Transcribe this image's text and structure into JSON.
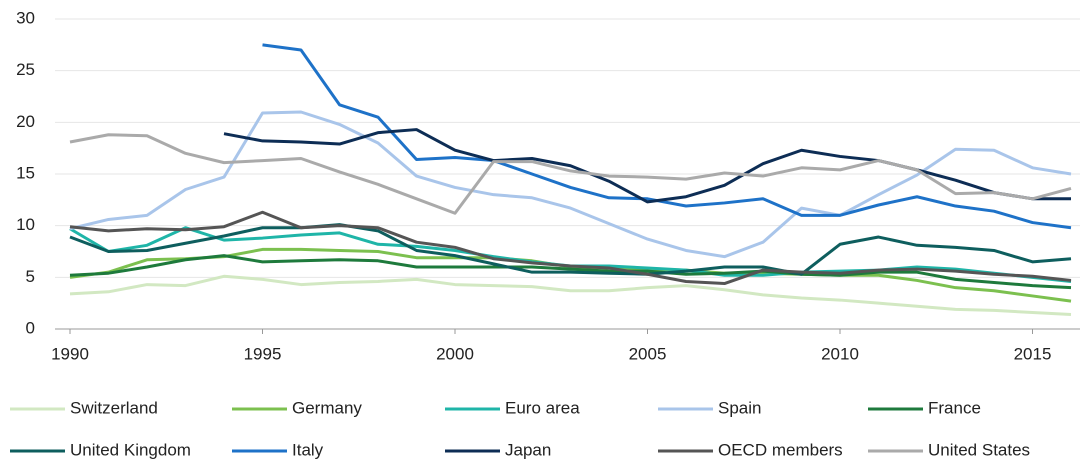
{
  "chart_data": {
    "type": "line",
    "x": [
      1990,
      1991,
      1992,
      1993,
      1994,
      1995,
      1996,
      1997,
      1998,
      1999,
      2000,
      2001,
      2002,
      2003,
      2004,
      2005,
      2006,
      2007,
      2008,
      2009,
      2010,
      2011,
      2012,
      2013,
      2014,
      2015,
      2016
    ],
    "xlim": [
      1990,
      2016
    ],
    "xticks": [
      1990,
      1995,
      2000,
      2005,
      2010,
      2015
    ],
    "ylim": [
      0,
      30
    ],
    "yticks": [
      0,
      5,
      10,
      15,
      20,
      25,
      30
    ],
    "grid": true,
    "legend": "bottom",
    "series": [
      {
        "name": "Switzerland",
        "color": "#d2e8c2",
        "values": [
          3.4,
          3.6,
          4.3,
          4.2,
          5.1,
          4.8,
          4.3,
          4.5,
          4.6,
          4.8,
          4.3,
          4.2,
          4.1,
          3.7,
          3.7,
          4.0,
          4.2,
          3.8,
          3.3,
          3.0,
          2.8,
          2.5,
          2.2,
          1.9,
          1.8,
          1.6,
          1.4
        ]
      },
      {
        "name": "Germany",
        "color": "#7cc04f",
        "values": [
          5.0,
          5.5,
          6.7,
          6.8,
          7.0,
          7.7,
          7.7,
          7.6,
          7.5,
          6.9,
          6.9,
          6.9,
          6.6,
          6.0,
          5.9,
          5.8,
          5.7,
          5.4,
          5.4,
          5.3,
          5.2,
          5.2,
          4.7,
          4.0,
          3.7,
          3.2,
          2.7
        ]
      },
      {
        "name": "Euro area",
        "color": "#1fb5a8",
        "values": [
          9.7,
          7.5,
          8.1,
          9.8,
          8.6,
          8.8,
          9.1,
          9.3,
          8.2,
          8.0,
          7.6,
          7.0,
          6.5,
          6.1,
          6.1,
          5.9,
          5.7,
          5.2,
          5.2,
          5.5,
          5.6,
          5.7,
          6.0,
          5.8,
          5.4,
          5.0,
          4.6
        ]
      },
      {
        "name": "Spain",
        "color": "#a9c5ea",
        "values": [
          9.7,
          10.6,
          11.0,
          13.5,
          14.7,
          20.9,
          21.0,
          19.8,
          18.0,
          14.8,
          13.7,
          13.0,
          12.7,
          11.7,
          10.2,
          8.7,
          7.6,
          7.0,
          8.4,
          11.7,
          11.0,
          13.0,
          14.9,
          17.4,
          17.3,
          15.6,
          15.0
        ]
      },
      {
        "name": "France",
        "color": "#1e7a3c",
        "values": [
          5.2,
          5.4,
          6.0,
          6.7,
          7.1,
          6.5,
          6.6,
          6.7,
          6.6,
          6.0,
          6.0,
          6.0,
          6.0,
          5.8,
          5.6,
          5.6,
          5.3,
          5.4,
          5.6,
          5.3,
          5.2,
          5.5,
          5.5,
          4.8,
          4.5,
          4.2,
          4.0
        ]
      },
      {
        "name": "United Kingdom",
        "color": "#0e5e5e",
        "values": [
          8.9,
          7.5,
          7.6,
          8.3,
          9.0,
          9.8,
          9.8,
          10.1,
          9.5,
          7.6,
          7.1,
          6.3,
          5.5,
          5.5,
          5.4,
          5.3,
          5.6,
          6.0,
          6.0,
          5.3,
          8.2,
          8.9,
          8.1,
          7.9,
          7.6,
          6.5,
          6.8
        ]
      },
      {
        "name": "Italy",
        "color": "#1e72c8",
        "values": [
          null,
          null,
          null,
          null,
          null,
          27.5,
          27.0,
          21.7,
          20.5,
          16.4,
          16.6,
          16.3,
          15.0,
          13.7,
          12.7,
          12.6,
          11.9,
          12.2,
          12.6,
          11.0,
          11.0,
          12.0,
          12.8,
          11.9,
          11.4,
          10.3,
          9.8
        ]
      },
      {
        "name": "Japan",
        "color": "#0d2d55",
        "values": [
          null,
          null,
          null,
          null,
          18.9,
          18.2,
          18.1,
          17.9,
          19.0,
          19.3,
          17.3,
          16.3,
          16.5,
          15.8,
          14.3,
          12.3,
          12.8,
          13.9,
          16.0,
          17.3,
          16.7,
          16.3,
          15.4,
          14.4,
          13.2,
          12.6,
          12.6
        ]
      },
      {
        "name": "OECD members",
        "color": "#555555",
        "values": [
          9.9,
          9.5,
          9.7,
          9.6,
          9.9,
          11.3,
          9.8,
          10.0,
          9.8,
          8.4,
          7.9,
          6.8,
          6.4,
          6.1,
          5.9,
          5.3,
          4.6,
          4.4,
          5.7,
          5.5,
          5.4,
          5.7,
          5.8,
          5.6,
          5.3,
          5.1,
          4.7
        ]
      },
      {
        "name": "United States",
        "color": "#aaaaaa",
        "values": [
          18.1,
          18.8,
          18.7,
          17.0,
          16.1,
          16.3,
          16.5,
          15.2,
          14.0,
          12.6,
          11.2,
          16.2,
          16.2,
          15.3,
          14.8,
          14.7,
          14.5,
          15.1,
          14.8,
          15.6,
          15.4,
          16.3,
          15.4,
          13.1,
          13.2,
          12.6,
          13.6
        ]
      }
    ]
  }
}
